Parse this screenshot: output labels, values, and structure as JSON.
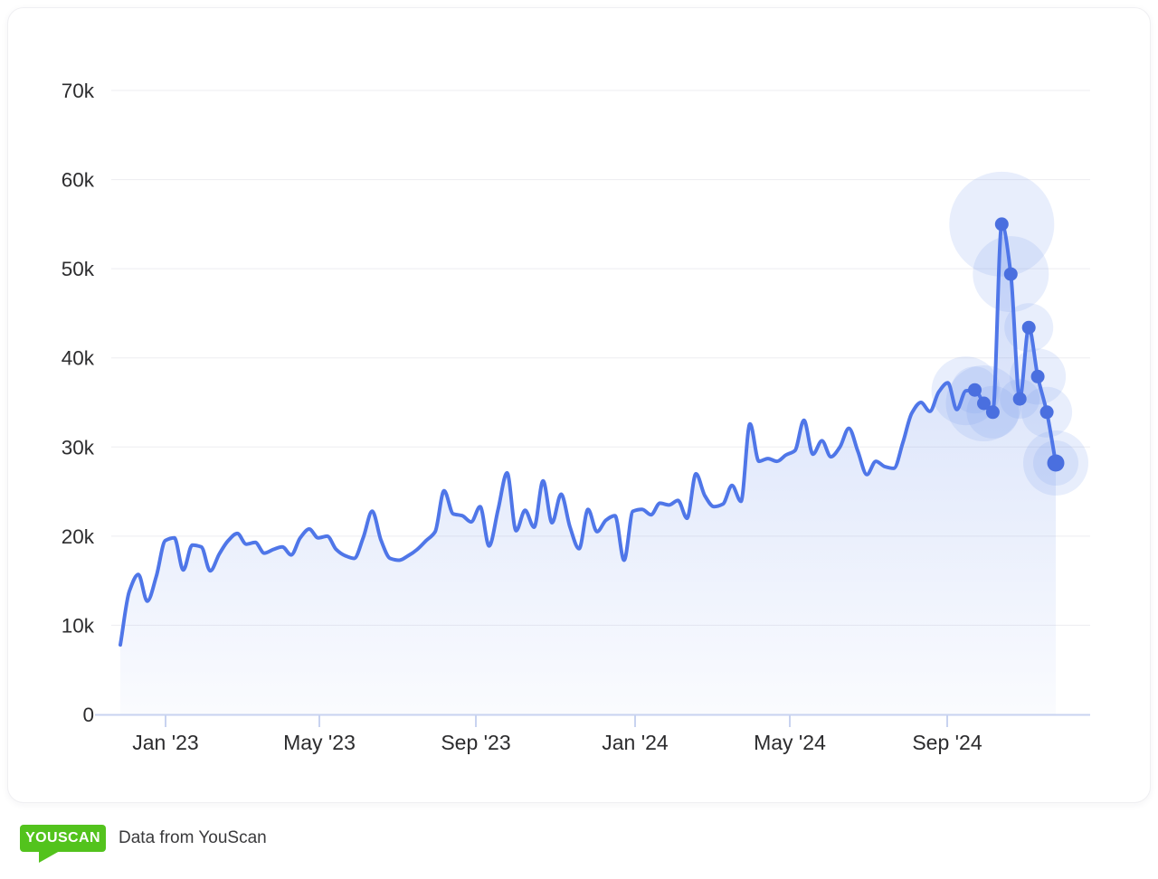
{
  "footer": {
    "logo_text": "YOUSCAN",
    "text": "Data from YouScan"
  },
  "colors": {
    "card_bg": "#ffffff",
    "card_border": "#efeff2",
    "grid": "#ededf0",
    "axis": "#c8d3f0",
    "label": "#2c2c2e",
    "line": "#4f76e8",
    "marker": "#4a6fdf",
    "area": "#5e86ea",
    "halo": "#7da0f0",
    "logo_green": "#53c31d",
    "footer_text": "#3a3a3c"
  },
  "chart_data": {
    "type": "area",
    "title": "",
    "xlabel": "",
    "ylabel": "",
    "legend": "none",
    "grid": "horizontal",
    "y_unit": "k",
    "ylim_k": [
      0,
      70
    ],
    "y_ticks_k": [
      70,
      60,
      50,
      40,
      30,
      20,
      10,
      0
    ],
    "y_tick_labels": [
      "70k",
      "60k",
      "50k",
      "40k",
      "30k",
      "20k",
      "10k",
      "0"
    ],
    "x_tick_labels": [
      "Jan '23",
      "May '23",
      "Sep '23",
      "Jan '24",
      "May '24",
      "Sep '24"
    ],
    "values_k": [
      7.8,
      13.8,
      15.7,
      12.7,
      15.5,
      19.5,
      19.8,
      16.2,
      19,
      18.8,
      16.1,
      18,
      19.5,
      20.3,
      19.1,
      19.3,
      18.1,
      18.5,
      18.8,
      17.9,
      19.8,
      20.8,
      19.8,
      20,
      18.5,
      17.8,
      17.5,
      19.8,
      22.8,
      19.5,
      17.5,
      17.3,
      17.8,
      18.5,
      19.5,
      20.5,
      25.1,
      22.5,
      22.3,
      21.6,
      23.3,
      18.9,
      23,
      27.1,
      20.6,
      22.9,
      21,
      26.2,
      21.5,
      24.7,
      21,
      18.6,
      23,
      20.5,
      21.8,
      22.3,
      17.3,
      22.8,
      23,
      22.4,
      23.7,
      23.5,
      24,
      22,
      27,
      24.5,
      23.3,
      23.6,
      25.7,
      23.9,
      32.6,
      28.4,
      28.7,
      28.4,
      29.1,
      29.6,
      33,
      29.2,
      30.7,
      28.9,
      30,
      32.1,
      29.5,
      26.9,
      28.4,
      27.8,
      27.6,
      30.5,
      33.8,
      35,
      34,
      36.2,
      37.2,
      34.2,
      36.3,
      36.4,
      34.9,
      33.9,
      55,
      49.4,
      35.4,
      43.4,
      37.9,
      33.9,
      28.2
    ],
    "highlighted_last_points": 10,
    "highlighted_values_k": [
      36.4,
      34.9,
      33.9,
      55,
      49.4,
      35.4,
      43.4,
      37.9,
      33.9,
      28.2
    ],
    "halos": [
      {
        "i": 94,
        "r": 38
      },
      {
        "i": 95,
        "r": 26
      },
      {
        "i": 96,
        "r": 42
      },
      {
        "i": 97,
        "r": 29
      },
      {
        "i": 98,
        "r": 58
      },
      {
        "i": 99,
        "r": 42
      },
      {
        "i": 100,
        "r": 22
      },
      {
        "i": 101,
        "r": 27
      },
      {
        "i": 102,
        "r": 31
      },
      {
        "i": 103,
        "r": 28
      },
      {
        "i": 104,
        "r": 36
      },
      {
        "i": 104,
        "r": 25
      }
    ],
    "halo_opacity": 0.18,
    "line_width": 4,
    "marker_radius": 7.5,
    "last_marker_radius": 9.5
  }
}
